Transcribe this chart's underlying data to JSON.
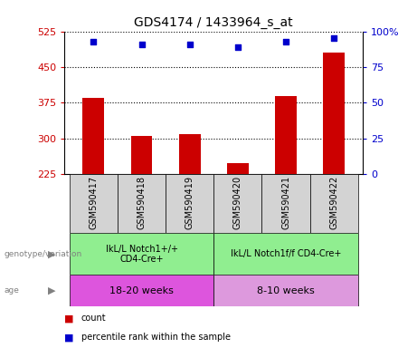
{
  "title": "GDS4174 / 1433964_s_at",
  "samples": [
    "GSM590417",
    "GSM590418",
    "GSM590419",
    "GSM590420",
    "GSM590421",
    "GSM590422"
  ],
  "counts": [
    385,
    305,
    308,
    248,
    388,
    480
  ],
  "percentiles": [
    93,
    91,
    91,
    89,
    93,
    95
  ],
  "ylim_left": [
    225,
    525
  ],
  "yticks_left": [
    225,
    300,
    375,
    450,
    525
  ],
  "ylim_right": [
    0,
    100
  ],
  "yticks_right": [
    0,
    25,
    50,
    75,
    100
  ],
  "ytick_labels_right": [
    "0",
    "25",
    "50",
    "75",
    "100%"
  ],
  "bar_color": "#cc0000",
  "dot_color": "#0000cc",
  "bar_width": 0.45,
  "group1_label": "IkL/L Notch1+/+\nCD4-Cre+",
  "group2_label": "IkL/L Notch1f/f CD4-Cre+",
  "group_color": "#90ee90",
  "age1_label": "18-20 weeks",
  "age2_label": "8-10 weeks",
  "age1_color": "#dd55dd",
  "age2_color": "#dd99dd",
  "genotype_label": "genotype/variation",
  "age_label": "age",
  "legend_count_label": "count",
  "legend_percentile_label": "percentile rank within the sample",
  "tick_color_left": "#cc0000",
  "tick_color_right": "#0000cc",
  "sample_box_color": "#d3d3d3",
  "title_fontsize": 10
}
